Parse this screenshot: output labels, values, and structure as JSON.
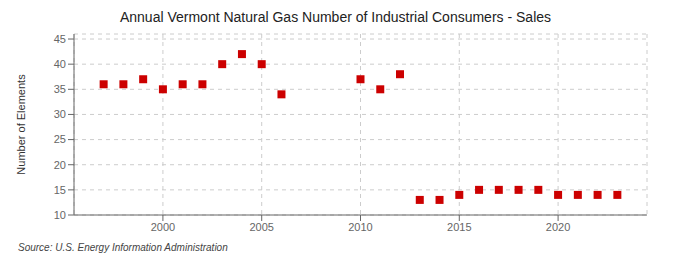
{
  "chart_data": {
    "type": "scatter",
    "title": "Annual Vermont Natural Gas Number of Industrial Consumers - Sales",
    "ylabel": "Number of Elements",
    "source": "Source: U.S. Energy Information Administration",
    "x": [
      1997,
      1998,
      1999,
      2000,
      2001,
      2002,
      2003,
      2004,
      2005,
      2006,
      2010,
      2011,
      2012,
      2013,
      2014,
      2015,
      2016,
      2017,
      2018,
      2019,
      2020,
      2021,
      2022,
      2023
    ],
    "values": [
      36,
      36,
      37,
      35,
      36,
      36,
      40,
      42,
      40,
      34,
      37,
      35,
      38,
      13,
      13,
      14,
      15,
      15,
      15,
      15,
      14,
      14,
      14,
      14
    ],
    "color": "#cc0000",
    "marker": "square",
    "xlim": [
      1995.5,
      2024.5
    ],
    "ylim": [
      10,
      46
    ],
    "xticks": [
      2000,
      2005,
      2010,
      2015,
      2020
    ],
    "yticks": [
      10,
      15,
      20,
      25,
      30,
      35,
      40,
      45
    ],
    "grid": true
  }
}
